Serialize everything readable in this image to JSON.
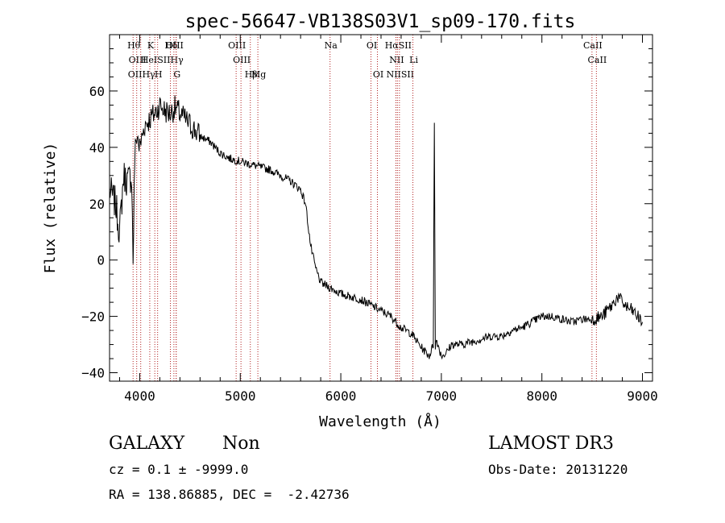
{
  "chart_data": {
    "type": "line",
    "title": "spec-56647-VB138S03V1_sp09-170.fits",
    "xlabel": "Wavelength (Å)",
    "ylabel": "Flux (relative)",
    "xlim": [
      3700,
      9100
    ],
    "ylim": [
      -43,
      80
    ],
    "xticks": [
      4000,
      5000,
      6000,
      7000,
      8000,
      9000
    ],
    "yticks": [
      -40,
      -20,
      0,
      20,
      40,
      60
    ],
    "xtick_labels": [
      "4000",
      "5000",
      "6000",
      "7000",
      "8000",
      "9000"
    ],
    "ytick_labels": [
      "−40",
      "−20",
      "0",
      "20",
      "40",
      "60"
    ],
    "series": [
      {
        "name": "flux",
        "x": [
          3700,
          3760,
          3800,
          3840,
          3880,
          3920,
          3934,
          3950,
          3970,
          4000,
          4050,
          4100,
          4150,
          4200,
          4250,
          4300,
          4350,
          4400,
          4450,
          4500,
          4600,
          4700,
          4800,
          4900,
          5000,
          5100,
          5200,
          5300,
          5400,
          5500,
          5600,
          5650,
          5700,
          5750,
          5800,
          5900,
          6000,
          6100,
          6200,
          6300,
          6400,
          6500,
          6600,
          6700,
          6800,
          6880,
          6920,
          6930,
          6940,
          6950,
          7000,
          7050,
          7100,
          7150,
          7200,
          7300,
          7400,
          7500,
          7600,
          7700,
          7800,
          7900,
          8000,
          8100,
          8200,
          8300,
          8400,
          8500,
          8600,
          8700,
          8750,
          8800,
          8850,
          8900,
          8950,
          9000
        ],
        "y": [
          25,
          20,
          10,
          30,
          28,
          30,
          0,
          35,
          45,
          40,
          48,
          50,
          52,
          55,
          53,
          52,
          54,
          52,
          50,
          48,
          44,
          42,
          38,
          36,
          35,
          34,
          33,
          32,
          30,
          28,
          25,
          20,
          5,
          -3,
          -8,
          -10,
          -12,
          -13,
          -14,
          -16,
          -18,
          -20,
          -24,
          -26,
          -31,
          -34,
          -30,
          50,
          -32,
          -28,
          -34,
          -33,
          -30,
          -30,
          -30,
          -29,
          -28,
          -27,
          -27,
          -25,
          -24,
          -22,
          -20,
          -20,
          -21,
          -22,
          -21,
          -21,
          -20,
          -16,
          -13,
          -15,
          -17,
          -18,
          -20,
          -22
        ]
      }
    ],
    "lines": [
      {
        "wave": 3934,
        "label": "K"
      },
      {
        "wave": 3969,
        "label": "H"
      },
      {
        "wave": 4102,
        "label": "Hδ"
      },
      {
        "wave": 4340,
        "label": "Hγ"
      },
      {
        "wave": 4861,
        "label": "Hβ"
      },
      {
        "wave": 5175,
        "label": "Mg"
      },
      {
        "wave": 5893,
        "label": "Na"
      },
      {
        "wave": 6563,
        "label": "Hα"
      }
    ],
    "lines_layout": [
      {
        "wave": 3934,
        "row": 0,
        "label": "Hθ",
        "dx": 0
      },
      {
        "wave": 3970,
        "row": 1,
        "label": "OIII",
        "dx": 0
      },
      {
        "wave": 4010,
        "row": 2,
        "label": "OIIHγ",
        "dx": 0
      },
      {
        "wave": 4100,
        "row": 0,
        "label": "K",
        "dx": 0
      },
      {
        "wave": 4150,
        "row": 1,
        "label": "HeISII",
        "dx": 0
      },
      {
        "wave": 4178,
        "row": 2,
        "label": "H",
        "dx": 0
      },
      {
        "wave": 4305,
        "row": 0,
        "label": "Hδ",
        "dx": 0
      },
      {
        "wave": 4340,
        "row": 0,
        "label": "OIII",
        "dx": 0
      },
      {
        "wave": 4362,
        "row": 1,
        "label": "Hγ",
        "dx": 0
      },
      {
        "wave": 4363,
        "row": 2,
        "label": "G",
        "dx": 0
      },
      {
        "wave": 4959,
        "row": 0,
        "label": "OIII",
        "dx": 0
      },
      {
        "wave": 5007,
        "row": 1,
        "label": "OIII",
        "dx": 0
      },
      {
        "wave": 5100,
        "row": 2,
        "label": "Hβ",
        "dx": 0
      },
      {
        "wave": 5175,
        "row": 2,
        "label": "Mg",
        "dx": 0
      },
      {
        "wave": 5893,
        "row": 0,
        "label": "Na",
        "dx": 0
      },
      {
        "wave": 6300,
        "row": 0,
        "label": "OI",
        "dx": 0
      },
      {
        "wave": 6364,
        "row": 2,
        "label": "OI",
        "dx": 0
      },
      {
        "wave": 6548,
        "row": 1,
        "label": "NII",
        "dx": 0
      },
      {
        "wave": 6563,
        "row": 0,
        "label": "HαSII",
        "dx": 0
      },
      {
        "wave": 6583,
        "row": 2,
        "label": "NIISII",
        "dx": 0
      },
      {
        "wave": 6717,
        "row": 1,
        "label": "Li",
        "dx": 0
      },
      {
        "wave": 8498,
        "row": 0,
        "label": "CaII",
        "dx": 0
      },
      {
        "wave": 8542,
        "row": 1,
        "label": "CaII",
        "dx": 0
      }
    ],
    "line_labels": [
      "Hθ",
      "K",
      "Hδ",
      "OIII",
      "OII",
      "HeI",
      "SII",
      "Hγ",
      "OIII",
      "OIIHγ",
      "H",
      "G",
      "OIII",
      "Hβ",
      "Mg",
      "Na",
      "OI",
      "HαSII",
      "NII",
      "Li",
      "OI",
      "NIISII",
      "CaII",
      "CaII"
    ]
  },
  "info": {
    "classification": "GALAXY",
    "subclass": "Non",
    "survey": "LAMOST DR3",
    "redshift_line": "cz = 0.1 ± -9999.0",
    "obs_date_line": "Obs-Date: 20131220",
    "coords_line": "RA = 138.86885, DEC =  -2.42736"
  }
}
